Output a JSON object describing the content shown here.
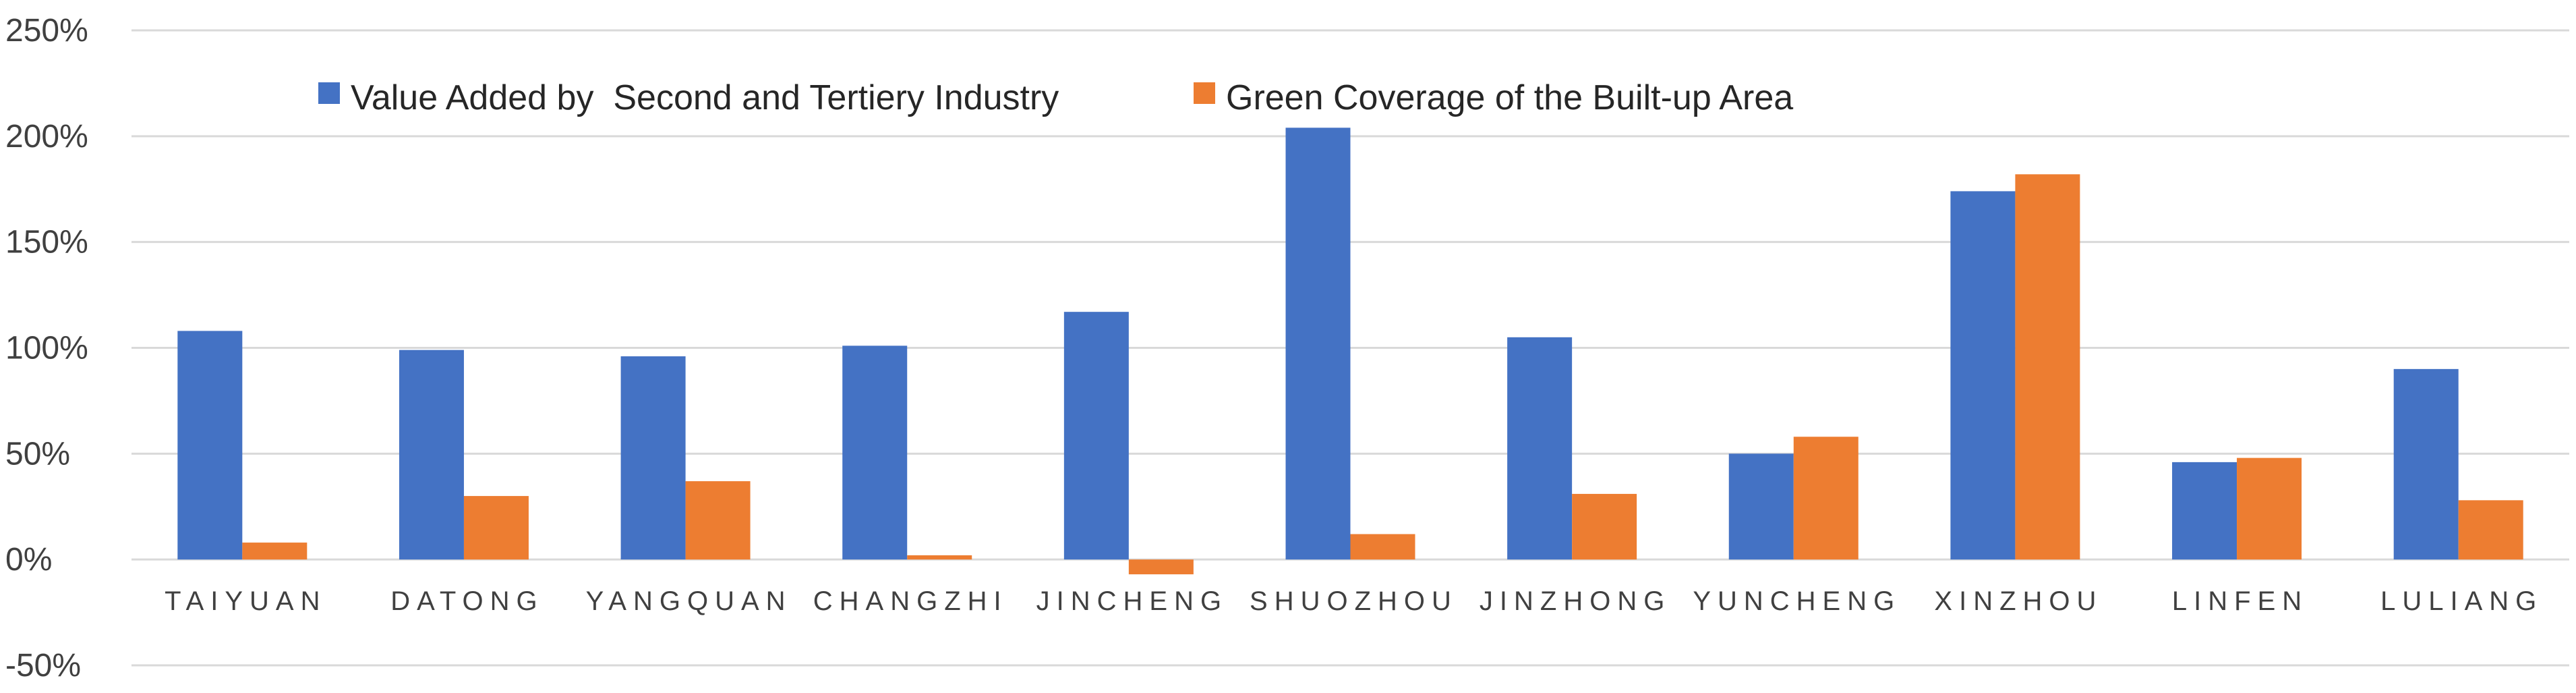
{
  "chart_data": {
    "type": "bar",
    "title": "",
    "xlabel": "",
    "ylabel": "",
    "ylim": [
      -50,
      250
    ],
    "yticks": [
      -50,
      0,
      50,
      100,
      150,
      200,
      250
    ],
    "ytick_labels": [
      "-50%",
      "0%",
      "50%",
      "100%",
      "150%",
      "200%",
      "250%"
    ],
    "grid": true,
    "legend_position": "top",
    "categories": [
      "TAIYUAN",
      "DATONG",
      "YANGQUAN",
      "CHANGZHI",
      "JINCHENG",
      "SHUOZHOU",
      "JINZHONG",
      "YUNCHENG",
      "XINZHOU",
      "LINFEN",
      "LULIANG"
    ],
    "series": [
      {
        "name": "Value Added by  Second and Tertiery Industry",
        "color": "#4472C4",
        "values": [
          108,
          99,
          96,
          101,
          117,
          204,
          105,
          50,
          174,
          46,
          90
        ]
      },
      {
        "name": "Green Coverage of the Built-up Area",
        "color": "#ED7D31",
        "values": [
          8,
          30,
          37,
          2,
          -7,
          12,
          31,
          58,
          182,
          48,
          28
        ]
      }
    ]
  }
}
